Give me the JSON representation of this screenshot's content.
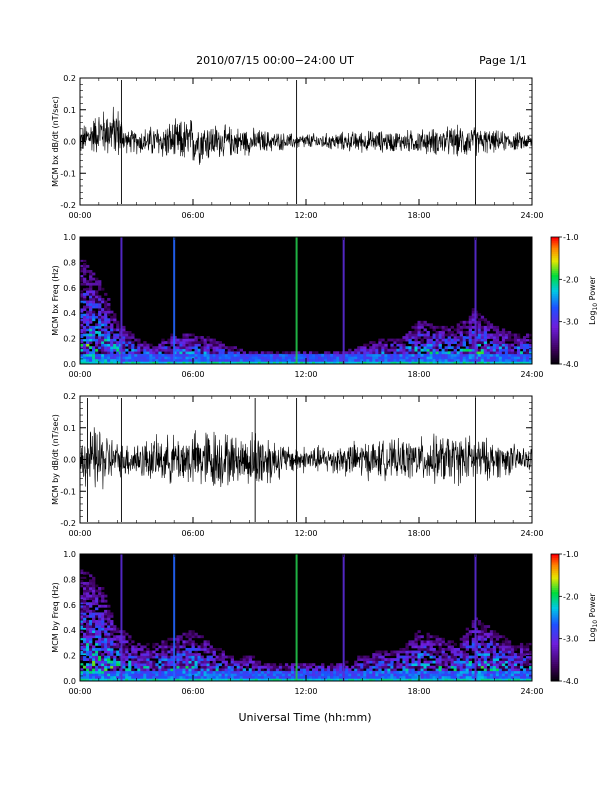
{
  "header": {
    "title": "2010/07/15  00:00−24:00 UT",
    "page": "Page 1/1"
  },
  "xlabel": "Universal Time (hh:mm)",
  "colors": {
    "background": "#ffffff",
    "axis": "#000000",
    "trace": "#000000",
    "spectrogram_bg": "#000000"
  },
  "chart_data": [
    {
      "type": "line",
      "ylabel": "MCM bx dB/dt (nT/sec)",
      "xlim": [
        "00:00",
        "24:00"
      ],
      "ylim": [
        -0.2,
        0.2
      ],
      "x_ticks": [
        "00:00",
        "06:00",
        "12:00",
        "18:00",
        "24:00"
      ],
      "y_ticks": [
        "-0.2",
        "-0.1",
        "0.0",
        "0.1",
        "0.2"
      ],
      "series": [
        {
          "values": [
            [
              0.0,
              0.0,
              0.05
            ],
            [
              1.0,
              0.03,
              0.08
            ],
            [
              2.0,
              0.03,
              0.1
            ],
            [
              2.5,
              0.0,
              0.04
            ],
            [
              4.0,
              0.0,
              0.06
            ],
            [
              6.0,
              0.0,
              0.09
            ],
            [
              7.5,
              0.0,
              0.06
            ],
            [
              9.0,
              0.0,
              0.05
            ],
            [
              11.0,
              0.0,
              0.03
            ],
            [
              13.0,
              0.0,
              0.03
            ],
            [
              15.0,
              0.0,
              0.04
            ],
            [
              17.0,
              0.0,
              0.04
            ],
            [
              19.0,
              0.0,
              0.05
            ],
            [
              20.5,
              0.0,
              0.06
            ],
            [
              22.0,
              0.0,
              0.04
            ],
            [
              24.0,
              0.0,
              0.03
            ]
          ]
        }
      ],
      "spikes_x": [
        2.2,
        11.5,
        21.0
      ]
    },
    {
      "type": "heatmap",
      "ylabel": "MCM bx Freq (Hz)",
      "xlim": [
        "00:00",
        "24:00"
      ],
      "ylim": [
        0.0,
        1.0
      ],
      "x_ticks": [
        "00:00",
        "06:00",
        "12:00",
        "18:00",
        "24:00"
      ],
      "y_ticks": [
        "0.0",
        "0.2",
        "0.4",
        "0.6",
        "0.8",
        "1.0"
      ],
      "colorbar": {
        "label": "Log10 Power",
        "label_main": "Log",
        "label_sub": "10",
        "label_rest": " Power",
        "range": [
          -4.0,
          -1.0
        ],
        "ticks": [
          "-1.0",
          "-2.0",
          "-3.0",
          "-4.0"
        ]
      },
      "activity_profile": [
        [
          0,
          0.85
        ],
        [
          1,
          0.7
        ],
        [
          2,
          0.35
        ],
        [
          3,
          0.2
        ],
        [
          4,
          0.15
        ],
        [
          5,
          0.25
        ],
        [
          6,
          0.25
        ],
        [
          7,
          0.2
        ],
        [
          8,
          0.15
        ],
        [
          9,
          0.1
        ],
        [
          10,
          0.1
        ],
        [
          11,
          0.1
        ],
        [
          12,
          0.1
        ],
        [
          13,
          0.1
        ],
        [
          14,
          0.1
        ],
        [
          15,
          0.15
        ],
        [
          16,
          0.2
        ],
        [
          17,
          0.2
        ],
        [
          18,
          0.35
        ],
        [
          19,
          0.3
        ],
        [
          20,
          0.3
        ],
        [
          21,
          0.45
        ],
        [
          22,
          0.3
        ],
        [
          23,
          0.25
        ],
        [
          24,
          0.25
        ]
      ],
      "lines": [
        {
          "x": 2.2,
          "color": "#5a2bd6"
        },
        {
          "x": 5.0,
          "color": "#2466ff"
        },
        {
          "x": 11.5,
          "color": "#22c44a"
        },
        {
          "x": 14.0,
          "color": "#5a2bd6"
        },
        {
          "x": 21.0,
          "color": "#5a2bd6"
        }
      ]
    },
    {
      "type": "line",
      "ylabel": "MCM by dB/dt (nT/sec)",
      "xlim": [
        "00:00",
        "24:00"
      ],
      "ylim": [
        -0.2,
        0.2
      ],
      "x_ticks": [
        "00:00",
        "06:00",
        "12:00",
        "18:00",
        "24:00"
      ],
      "y_ticks": [
        "-0.2",
        "-0.1",
        "0.0",
        "0.1",
        "0.2"
      ],
      "series": [
        {
          "values": [
            [
              0.0,
              0.0,
              0.08
            ],
            [
              1.0,
              0.0,
              0.13
            ],
            [
              2.0,
              0.0,
              0.06
            ],
            [
              4.0,
              0.0,
              0.08
            ],
            [
              6.0,
              0.0,
              0.1
            ],
            [
              7.0,
              0.0,
              0.12
            ],
            [
              8.5,
              0.0,
              0.08
            ],
            [
              9.5,
              0.0,
              0.12
            ],
            [
              11.0,
              0.0,
              0.05
            ],
            [
              13.0,
              0.0,
              0.05
            ],
            [
              15.0,
              0.0,
              0.07
            ],
            [
              17.0,
              0.0,
              0.07
            ],
            [
              19.0,
              0.0,
              0.09
            ],
            [
              20.5,
              0.0,
              0.09
            ],
            [
              22.0,
              0.0,
              0.07
            ],
            [
              24.0,
              0.0,
              0.04
            ]
          ]
        }
      ],
      "spikes_x": [
        0.4,
        2.2,
        9.3,
        11.5,
        21.0
      ]
    },
    {
      "type": "heatmap",
      "ylabel": "MCM by Freq (Hz)",
      "xlim": [
        "00:00",
        "24:00"
      ],
      "ylim": [
        0.0,
        1.0
      ],
      "x_ticks": [
        "00:00",
        "06:00",
        "12:00",
        "18:00",
        "24:00"
      ],
      "y_ticks": [
        "0.0",
        "0.2",
        "0.4",
        "0.6",
        "0.8",
        "1.0"
      ],
      "colorbar": {
        "label": "Log10 Power",
        "label_main": "Log",
        "label_sub": "10",
        "label_rest": " Power",
        "range": [
          -4.0,
          -1.0
        ],
        "ticks": [
          "-1.0",
          "-2.0",
          "-3.0",
          "-4.0"
        ]
      },
      "activity_profile": [
        [
          0,
          0.9
        ],
        [
          1,
          0.8
        ],
        [
          2,
          0.45
        ],
        [
          3,
          0.3
        ],
        [
          4,
          0.3
        ],
        [
          5,
          0.35
        ],
        [
          6,
          0.4
        ],
        [
          7,
          0.3
        ],
        [
          8,
          0.2
        ],
        [
          9,
          0.2
        ],
        [
          10,
          0.15
        ],
        [
          11,
          0.15
        ],
        [
          12,
          0.15
        ],
        [
          13,
          0.15
        ],
        [
          14,
          0.15
        ],
        [
          15,
          0.2
        ],
        [
          16,
          0.25
        ],
        [
          17,
          0.25
        ],
        [
          18,
          0.4
        ],
        [
          19,
          0.35
        ],
        [
          20,
          0.3
        ],
        [
          21,
          0.5
        ],
        [
          22,
          0.4
        ],
        [
          23,
          0.3
        ],
        [
          24,
          0.3
        ]
      ],
      "lines": [
        {
          "x": 2.2,
          "color": "#5a2bd6"
        },
        {
          "x": 5.0,
          "color": "#2466ff"
        },
        {
          "x": 11.5,
          "color": "#22c44a"
        },
        {
          "x": 14.0,
          "color": "#5a2bd6"
        },
        {
          "x": 21.0,
          "color": "#5a2bd6"
        }
      ]
    }
  ]
}
